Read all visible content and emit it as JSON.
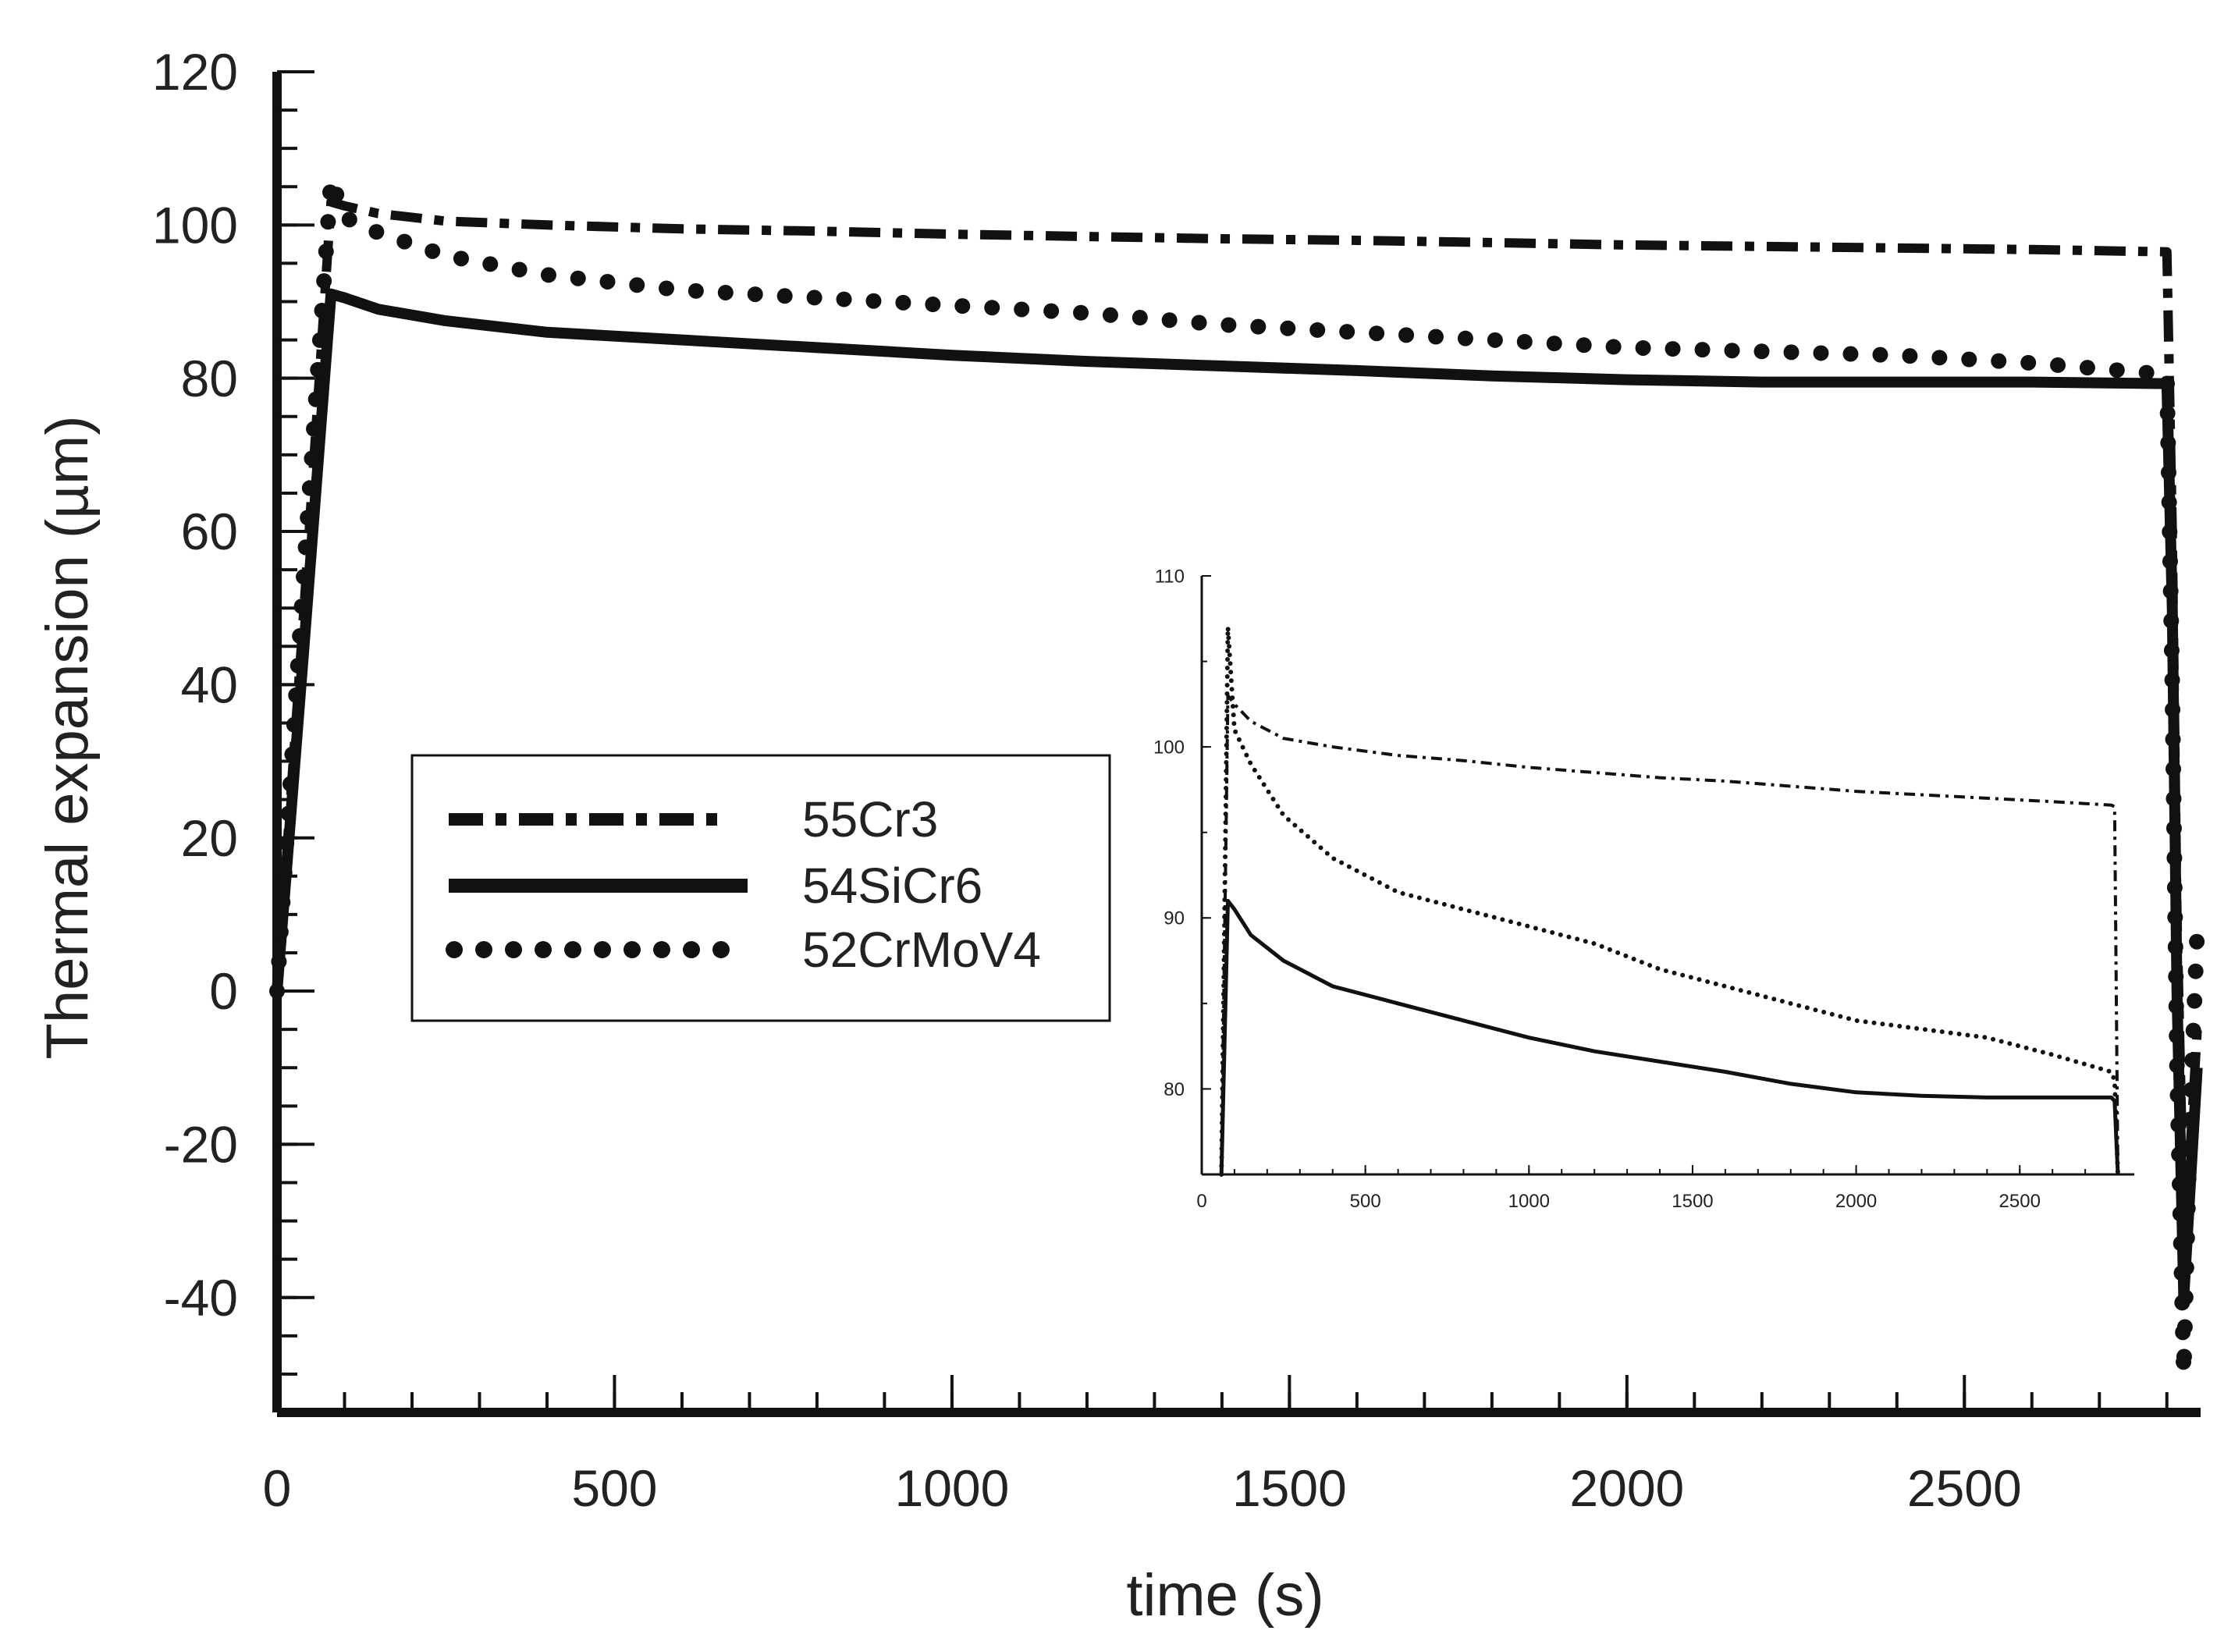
{
  "chart_data": [
    {
      "type": "line",
      "title": "",
      "xlabel": "time (s)",
      "ylabel": "Thermal expansion (µm)",
      "xlim": [
        0,
        2850
      ],
      "ylim": [
        -55,
        120
      ],
      "xticks": [
        0,
        500,
        1000,
        1500,
        2000,
        2500
      ],
      "xtick_labels": [
        "0",
        "500",
        "1000",
        "1500",
        "2000",
        "2500"
      ],
      "yticks": [
        120,
        100,
        80,
        60,
        40,
        20,
        0,
        -20,
        -40
      ],
      "ytick_labels": [
        "120",
        "100",
        "80",
        "60",
        "40",
        "20",
        "0",
        "-20",
        "-40"
      ],
      "legend_position": "middle-left",
      "series": [
        {
          "name": "55Cr3",
          "style": "dash-dot",
          "x": [
            0,
            40,
            80,
            100,
            150,
            250,
            400,
            600,
            800,
            1000,
            1200,
            1400,
            1600,
            1800,
            2000,
            2200,
            2400,
            2600,
            2800,
            2808,
            2815,
            2825,
            2835,
            2845
          ],
          "y": [
            0,
            50,
            103,
            102.5,
            101.5,
            100.5,
            100,
            99.5,
            99.2,
            98.8,
            98.5,
            98.2,
            98,
            97.7,
            97.4,
            97.2,
            97,
            96.8,
            96.5,
            60,
            10,
            -30,
            -20,
            -5
          ]
        },
        {
          "name": "54SiCr6",
          "style": "solid",
          "x": [
            0,
            40,
            80,
            100,
            150,
            250,
            400,
            600,
            800,
            1000,
            1200,
            1400,
            1600,
            1800,
            2000,
            2200,
            2400,
            2600,
            2800,
            2808,
            2815,
            2825,
            2835,
            2845
          ],
          "y": [
            0,
            45,
            91,
            90.5,
            89,
            87.5,
            86,
            85,
            84,
            83,
            82.2,
            81.6,
            81,
            80.3,
            79.8,
            79.5,
            79.5,
            79.5,
            79.3,
            50,
            0,
            -40,
            -25,
            -10
          ]
        },
        {
          "name": "52CrMoV4",
          "style": "dotted",
          "x": [
            0,
            40,
            80,
            100,
            150,
            250,
            400,
            600,
            800,
            1000,
            1200,
            1400,
            1600,
            1800,
            2000,
            2200,
            2400,
            2600,
            2800,
            2808,
            2815,
            2825,
            2835,
            2845
          ],
          "y": [
            0,
            55,
            106,
            101,
            99,
            96,
            93.5,
            91.5,
            90.5,
            89.5,
            88.5,
            87,
            86,
            85,
            84,
            83.5,
            83,
            82,
            80.5,
            40,
            -10,
            -50,
            -15,
            8
          ]
        }
      ]
    },
    {
      "type": "line",
      "title": "",
      "xlabel": "",
      "ylabel": "",
      "xlim": [
        0,
        2850
      ],
      "ylim": [
        75,
        110
      ],
      "xticks": [
        0,
        500,
        1000,
        1500,
        2000,
        2500
      ],
      "xtick_labels": [
        "0",
        "500",
        "1000",
        "1500",
        "2000",
        "2500"
      ],
      "yticks": [
        110,
        100,
        90,
        80
      ],
      "ytick_labels": [
        "110",
        "100",
        "90",
        "80"
      ],
      "series": [
        {
          "name": "55Cr3",
          "style": "dash-dot",
          "x": [
            60,
            80,
            100,
            150,
            250,
            400,
            600,
            800,
            1000,
            1200,
            1400,
            1600,
            1800,
            2000,
            2200,
            2400,
            2600,
            2780,
            2790,
            2800
          ],
          "y": [
            75,
            103,
            102.5,
            101.5,
            100.5,
            100,
            99.5,
            99.2,
            98.8,
            98.5,
            98.2,
            98,
            97.7,
            97.4,
            97.2,
            97,
            96.8,
            96.6,
            96.5,
            75
          ]
        },
        {
          "name": "54SiCr6",
          "style": "solid",
          "x": [
            60,
            80,
            100,
            150,
            250,
            400,
            600,
            800,
            1000,
            1200,
            1400,
            1600,
            1800,
            2000,
            2200,
            2400,
            2600,
            2780,
            2790,
            2800
          ],
          "y": [
            75,
            91,
            90.5,
            89,
            87.5,
            86,
            85,
            84,
            83,
            82.2,
            81.6,
            81,
            80.3,
            79.8,
            79.6,
            79.5,
            79.5,
            79.5,
            79.3,
            75
          ]
        },
        {
          "name": "52CrMoV4",
          "style": "dotted",
          "x": [
            60,
            80,
            100,
            150,
            250,
            400,
            600,
            800,
            1000,
            1200,
            1400,
            1600,
            1800,
            2000,
            2200,
            2400,
            2600,
            2780,
            2790,
            2800
          ],
          "y": [
            75,
            107,
            101,
            99,
            96,
            93.5,
            91.5,
            90.5,
            89.5,
            88.5,
            87,
            86,
            85,
            84,
            83.5,
            83,
            82,
            81,
            80.5,
            75
          ]
        }
      ]
    }
  ]
}
